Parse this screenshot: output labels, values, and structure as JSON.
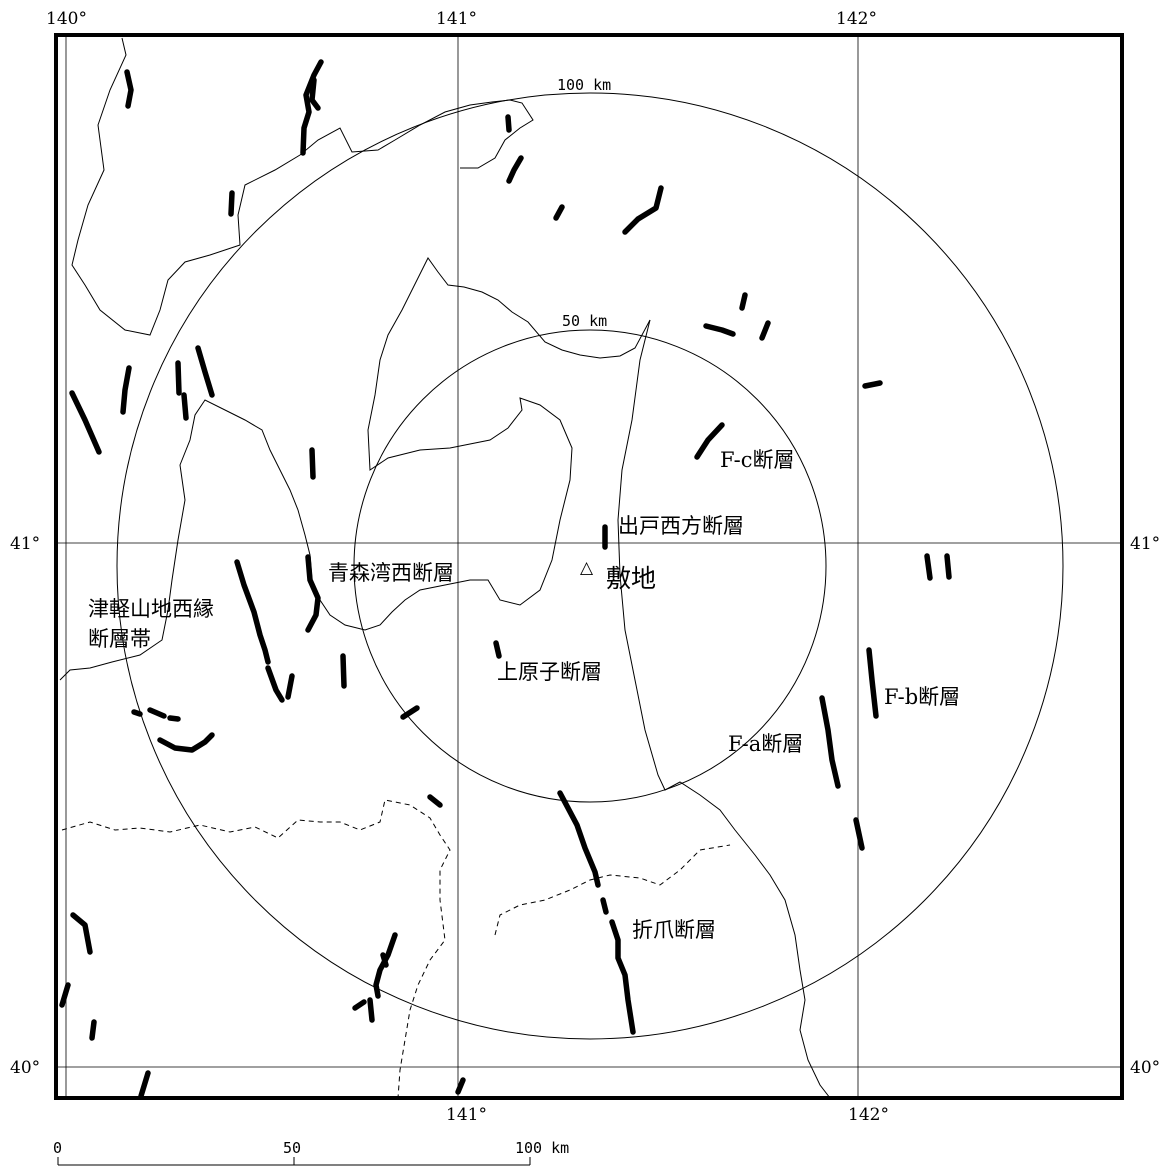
{
  "map": {
    "graticule": {
      "lon_top": [
        "140°",
        "141°",
        "142°"
      ],
      "lon_bottom": [
        "141°",
        "142°"
      ],
      "lat_left": [
        "41°",
        "40°"
      ],
      "lat_right": [
        "41°",
        "40°"
      ]
    },
    "rings": {
      "outer_label": "100 km",
      "inner_label": "50 km"
    },
    "site": {
      "marker": "△",
      "label": "敷地"
    },
    "faults": {
      "fc": "F-c断層",
      "deto": "出戸西方断層",
      "aomori": "青森湾西断層",
      "tsugaru_1": "津軽山地西縁",
      "tsugaru_2": "断層帯",
      "kamihara": "上原子断層",
      "fb": "F-b断層",
      "fa": "F-a断層",
      "orizume": "折爪断層"
    },
    "scale_bar": {
      "t0": "0",
      "t50": "50",
      "t100": "100 km"
    }
  }
}
